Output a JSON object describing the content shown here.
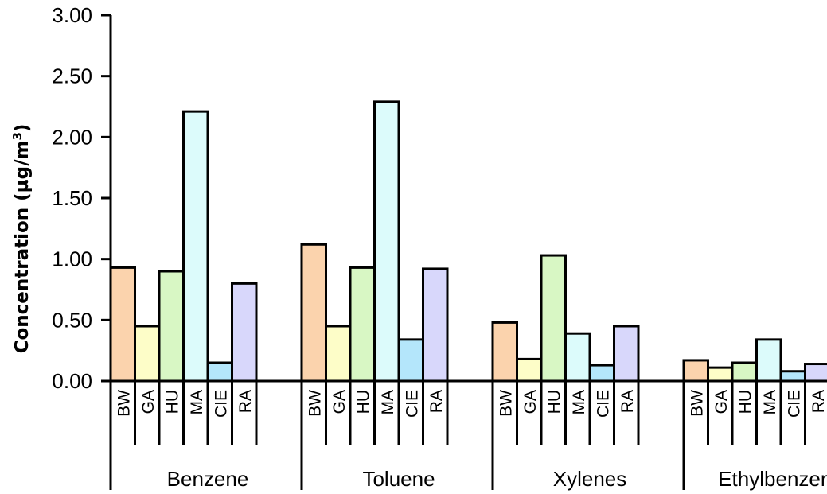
{
  "chart_data": {
    "type": "bar",
    "ylabel": "Concentration (µg/m3)",
    "ylabel_main": "Concentration (µg/m",
    "ylabel_sup": "3",
    "ylabel_end": ")",
    "ylim": [
      0,
      3
    ],
    "yticks": [
      "0.00",
      "0.50",
      "1.00",
      "1.50",
      "2.00",
      "2.50",
      "3.00"
    ],
    "ytick_values": [
      0,
      0.5,
      1,
      1.5,
      2,
      2.5,
      3
    ],
    "grid": false,
    "sites": [
      "BW",
      "GA",
      "HU",
      "MA",
      "CIE",
      "RA"
    ],
    "colors": {
      "BW": "#fbd3ad",
      "GA": "#fdfdc8",
      "HU": "#d8f7c4",
      "MA": "#dcfbfb",
      "CIE": "#b4e6fb",
      "RA": "#d8d7fb"
    },
    "groups": [
      {
        "name": "Benzene",
        "values": [
          0.93,
          0.45,
          0.9,
          2.21,
          0.15,
          0.8
        ]
      },
      {
        "name": "Toluene",
        "values": [
          1.12,
          0.45,
          0.93,
          2.29,
          0.34,
          0.92
        ]
      },
      {
        "name": "Xylenes",
        "values": [
          0.48,
          0.18,
          1.03,
          0.39,
          0.13,
          0.45
        ]
      },
      {
        "name": "Ethylbenzene",
        "values": [
          0.17,
          0.11,
          0.15,
          0.34,
          0.08,
          0.14
        ]
      }
    ]
  }
}
